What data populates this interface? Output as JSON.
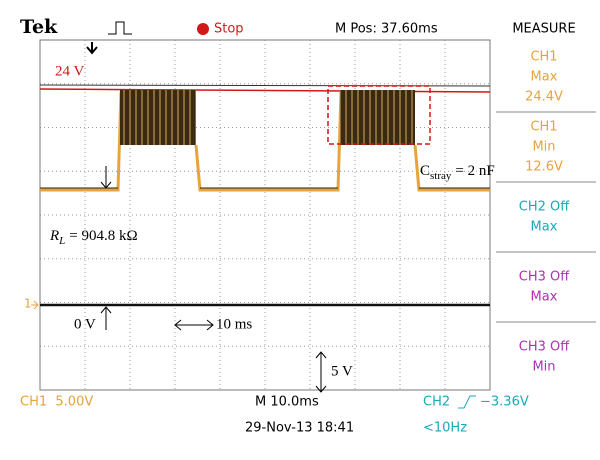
{
  "header": {
    "brand": "Tek",
    "state": "Stop",
    "position": "M Pos: 37.60ms",
    "menu_title": "MEASURE"
  },
  "menu": [
    {
      "lines": [
        "CH1",
        "Max",
        "24.4V"
      ]
    },
    {
      "lines": [
        "CH1",
        "Min",
        "12.6V"
      ]
    },
    {
      "lines": [
        "CH2 Off",
        "Max"
      ]
    },
    {
      "lines": [
        "CH3 Off",
        "Max"
      ]
    },
    {
      "lines": [
        "CH3 Off",
        "Min"
      ]
    }
  ],
  "annotations": {
    "ref_voltage": "24 V",
    "c_symbol": "C",
    "c_sub": "stray",
    "c_value": "= 2 nF",
    "r_symbol": "R",
    "r_sub": "L",
    "r_value": "= 904.8 kΩ",
    "zero": "0 V",
    "time_div": "10 ms",
    "volt_div": "5 V",
    "channel_marker": "1"
  },
  "footer": {
    "ch1_scale": "CH1  5.00V",
    "timebase": "M 10.0ms",
    "trigger_channel": "CH2",
    "trigger_level": "−3.36V",
    "datetime": "29-Nov-13 18:41",
    "trigger_freq": "<10Hz"
  }
}
